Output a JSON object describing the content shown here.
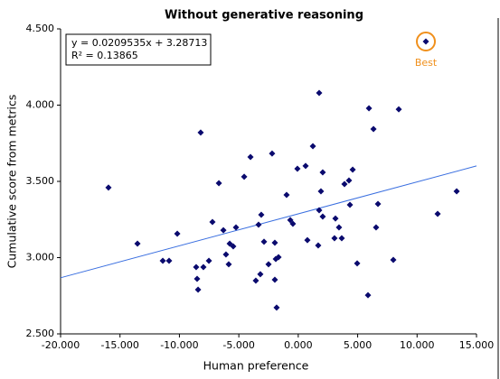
{
  "chart_data": {
    "type": "scatter",
    "title": "Without generative reasoning",
    "x_label": "Human preference",
    "y_label": "Cumulative score from metrics",
    "annotation_lines": [
      "y = 0.0209535x + 3.28713",
      "R² = 0.13865"
    ],
    "trendline": {
      "slope": 0.0209535,
      "intercept": 3.28713,
      "color": "#3a6fe0"
    },
    "best_label": "Best",
    "best_color": "#f0901c",
    "color": "#0a0a6e",
    "xlim": [
      -20,
      15
    ],
    "xticks": [
      {
        "value": -20,
        "label": "-20.000"
      },
      {
        "value": -15,
        "label": "-15.000"
      },
      {
        "value": -10,
        "label": "-10.000"
      },
      {
        "value": -5,
        "label": "-5.000"
      },
      {
        "value": 0,
        "label": "0.000"
      },
      {
        "value": 5,
        "label": "5.000"
      },
      {
        "value": 10,
        "label": "10.000"
      },
      {
        "value": 15,
        "label": "15.000"
      }
    ],
    "ylim": [
      2.5,
      4.5
    ],
    "yticks": [
      {
        "value": 2.5,
        "label": "2.500"
      },
      {
        "value": 3,
        "label": "3.000"
      },
      {
        "value": 3.5,
        "label": "3.500"
      },
      {
        "value": 4,
        "label": "4.000"
      },
      {
        "value": 4.5,
        "label": "4.500"
      }
    ],
    "x": [
      -15.97,
      -13.53,
      -11.4,
      -10.87,
      -10.18,
      -8.59,
      -8.21,
      -8.51,
      -8.43,
      -7.98,
      -7.52,
      -7.22,
      -6.68,
      -6.3,
      -6.08,
      -5.85,
      -5.77,
      -5.47,
      -5.24,
      -4.55,
      -4.02,
      -3.57,
      -3.34,
      -3.19,
      -3.11,
      -2.88,
      -2.5,
      -2.2,
      -1.97,
      -1.89,
      -1.97,
      -1.82,
      -1.66,
      -0.98,
      -0.67,
      -0.45,
      -0.07,
      0.62,
      0.77,
      1.23,
      1.68,
      1.76,
      1.76,
      1.91,
      2.06,
      2.06,
      3.13,
      3.05,
      3.43,
      3.66,
      3.89,
      4.27,
      4.35,
      4.58,
      4.96,
      5.95,
      5.87,
      6.33,
      6.55,
      6.71,
      8.0,
      8.46,
      10.74,
      11.73,
      13.33
    ],
    "values": [
      3.459,
      3.092,
      2.979,
      2.979,
      3.157,
      2.938,
      3.82,
      2.861,
      2.79,
      2.938,
      2.979,
      3.234,
      3.488,
      3.18,
      3.021,
      2.956,
      3.092,
      3.074,
      3.198,
      3.53,
      3.66,
      2.849,
      3.216,
      2.891,
      3.281,
      3.104,
      2.956,
      3.683,
      3.098,
      2.991,
      2.855,
      2.672,
      3.003,
      3.411,
      3.246,
      3.222,
      3.583,
      3.601,
      3.115,
      3.731,
      3.08,
      4.08,
      3.311,
      3.435,
      3.559,
      3.269,
      3.257,
      3.127,
      3.198,
      3.127,
      3.482,
      3.506,
      3.346,
      3.577,
      2.962,
      3.979,
      2.754,
      3.843,
      3.198,
      3.352,
      2.985,
      3.973,
      4.417,
      3.287,
      3.435
    ]
  }
}
